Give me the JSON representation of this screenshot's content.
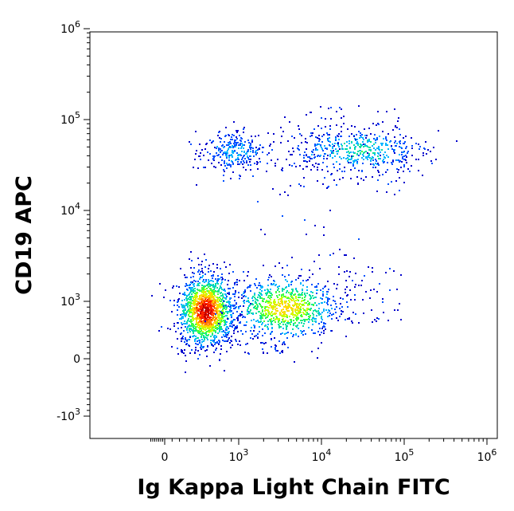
{
  "chart_data": {
    "type": "scatter",
    "style": "flow-cytometry density dot plot, biexponential axes, rainbow density coloring",
    "title": "",
    "xlabel": "Ig Kappa Light Chain FITC",
    "ylabel": "CD19 APC",
    "xscale": "biexponential",
    "yscale": "biexponential",
    "xlim": [
      -800,
      1000000
    ],
    "ylim": [
      -2000,
      1000000
    ],
    "x_ticks": [
      {
        "value": 0,
        "label": "0"
      },
      {
        "value": 1000,
        "base": "10",
        "exp": "3"
      },
      {
        "value": 10000,
        "base": "10",
        "exp": "4"
      },
      {
        "value": 100000,
        "base": "10",
        "exp": "5"
      },
      {
        "value": 1000000,
        "base": "10",
        "exp": "6"
      }
    ],
    "y_ticks": [
      {
        "value": -1000,
        "base": "-10",
        "exp": "3"
      },
      {
        "value": 0,
        "label": "0"
      },
      {
        "value": 1000,
        "base": "10",
        "exp": "3"
      },
      {
        "value": 10000,
        "base": "10",
        "exp": "4"
      },
      {
        "value": 100000,
        "base": "10",
        "exp": "5"
      },
      {
        "value": 1000000,
        "base": "10",
        "exp": "6"
      }
    ],
    "populations": [
      {
        "x_center": 550,
        "y_center": 850,
        "relative_density": 1.0
      },
      {
        "x_center": 3500,
        "y_center": 900,
        "relative_density": 0.55
      },
      {
        "x_center": 950,
        "y_center": 45000,
        "relative_density": 0.2
      },
      {
        "x_center": 28000,
        "y_center": 47000,
        "relative_density": 0.28
      }
    ],
    "density_colors": [
      "#0000cc",
      "#0050ff",
      "#00b4ff",
      "#00e0a0",
      "#40ff40",
      "#c8ff00",
      "#ffd800",
      "#ff8000",
      "#ff2000",
      "#c00000"
    ],
    "grid": false,
    "legend": "none"
  }
}
